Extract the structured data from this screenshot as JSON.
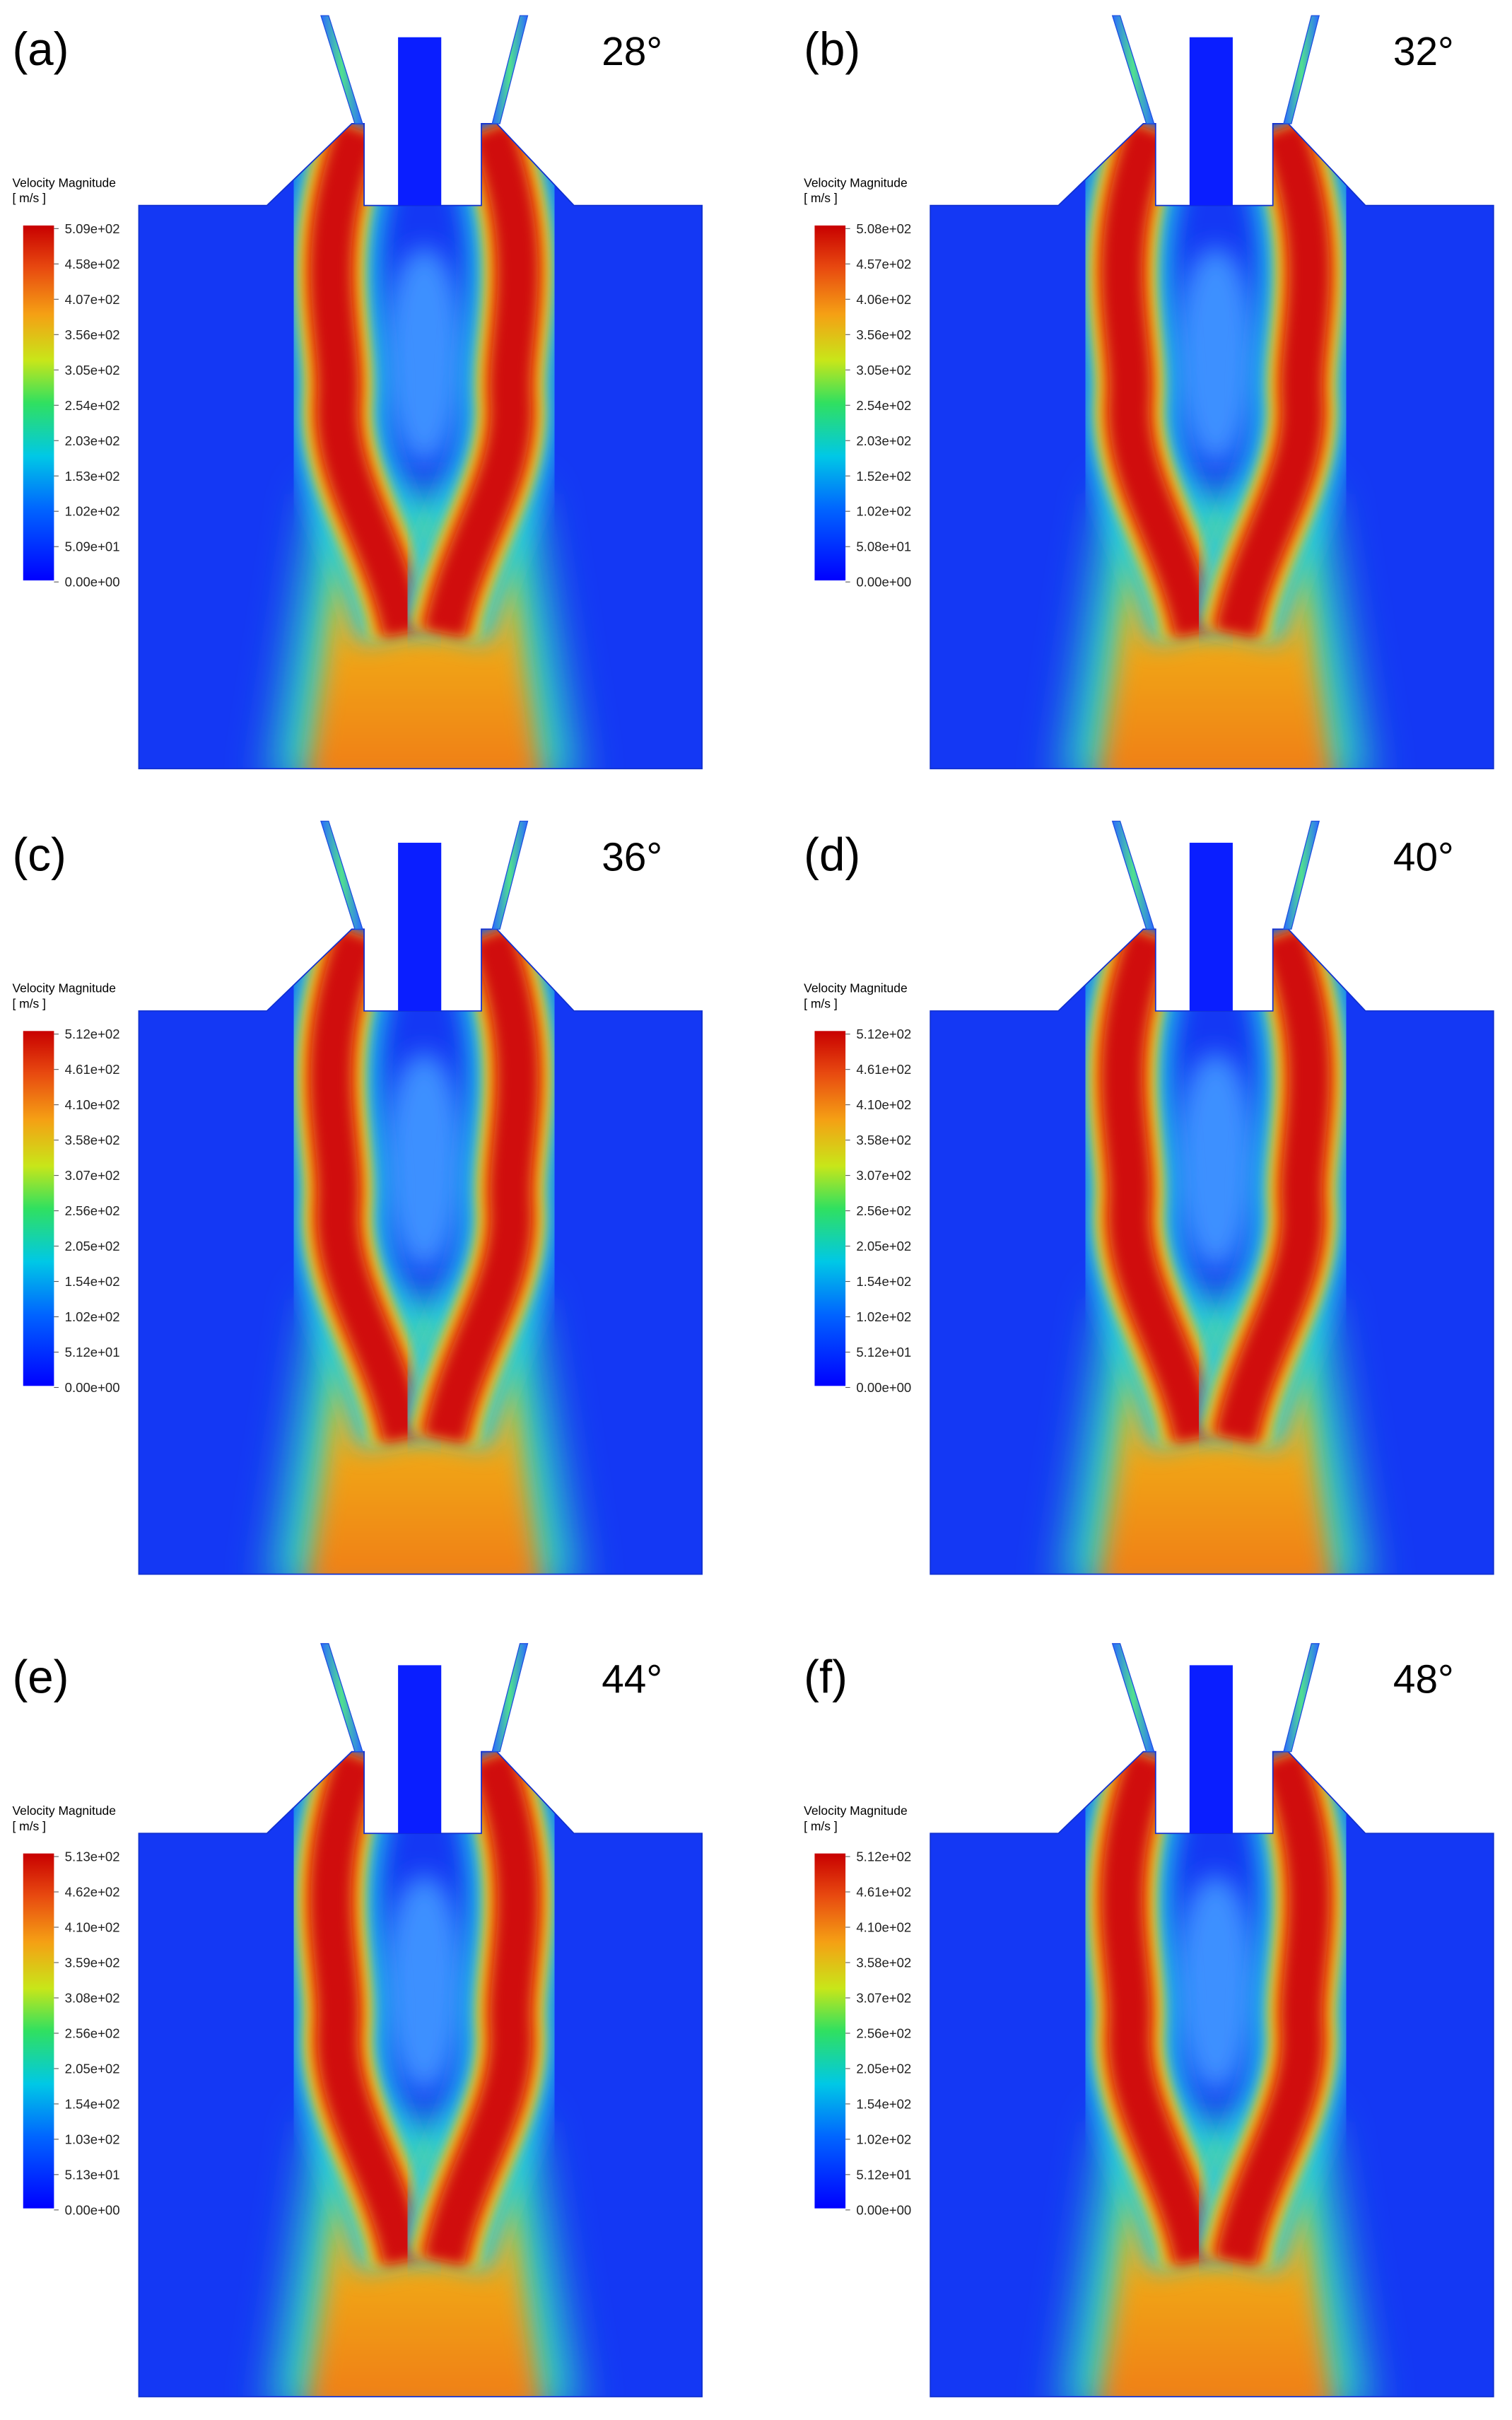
{
  "panels": [
    {
      "label": "(a)",
      "angle": "28°",
      "legend_title": "Velocity Magnitude",
      "unit": "[ m/s ]",
      "ticks": [
        "5.09e+02",
        "4.58e+02",
        "4.07e+02",
        "3.56e+02",
        "3.05e+02",
        "2.54e+02",
        "2.03e+02",
        "1.53e+02",
        "1.02e+02",
        "5.09e+01",
        "0.00e+00"
      ]
    },
    {
      "label": "(b)",
      "angle": "32°",
      "legend_title": "Velocity Magnitude",
      "unit": "[ m/s ]",
      "ticks": [
        "5.08e+02",
        "4.57e+02",
        "4.06e+02",
        "3.56e+02",
        "3.05e+02",
        "2.54e+02",
        "2.03e+02",
        "1.52e+02",
        "1.02e+02",
        "5.08e+01",
        "0.00e+00"
      ]
    },
    {
      "label": "(c)",
      "angle": "36°",
      "legend_title": "Velocity Magnitude",
      "unit": "[ m/s ]",
      "ticks": [
        "5.12e+02",
        "4.61e+02",
        "4.10e+02",
        "3.58e+02",
        "3.07e+02",
        "2.56e+02",
        "2.05e+02",
        "1.54e+02",
        "1.02e+02",
        "5.12e+01",
        "0.00e+00"
      ]
    },
    {
      "label": "(d)",
      "angle": "40°",
      "legend_title": "Velocity Magnitude",
      "unit": "[ m/s ]",
      "ticks": [
        "5.12e+02",
        "4.61e+02",
        "4.10e+02",
        "3.58e+02",
        "3.07e+02",
        "2.56e+02",
        "2.05e+02",
        "1.54e+02",
        "1.02e+02",
        "5.12e+01",
        "0.00e+00"
      ]
    },
    {
      "label": "(e)",
      "angle": "44°",
      "legend_title": "Velocity Magnitude",
      "unit": "[ m/s ]",
      "ticks": [
        "5.13e+02",
        "4.62e+02",
        "4.10e+02",
        "3.59e+02",
        "3.08e+02",
        "2.56e+02",
        "2.05e+02",
        "1.54e+02",
        "1.03e+02",
        "5.13e+01",
        "0.00e+00"
      ]
    },
    {
      "label": "(f)",
      "angle": "48°",
      "legend_title": "Velocity Magnitude",
      "unit": "[ m/s ]",
      "ticks": [
        "5.12e+02",
        "4.61e+02",
        "4.10e+02",
        "3.58e+02",
        "3.07e+02",
        "2.56e+02",
        "2.05e+02",
        "1.54e+02",
        "1.02e+02",
        "5.12e+01",
        "0.00e+00"
      ]
    }
  ]
}
